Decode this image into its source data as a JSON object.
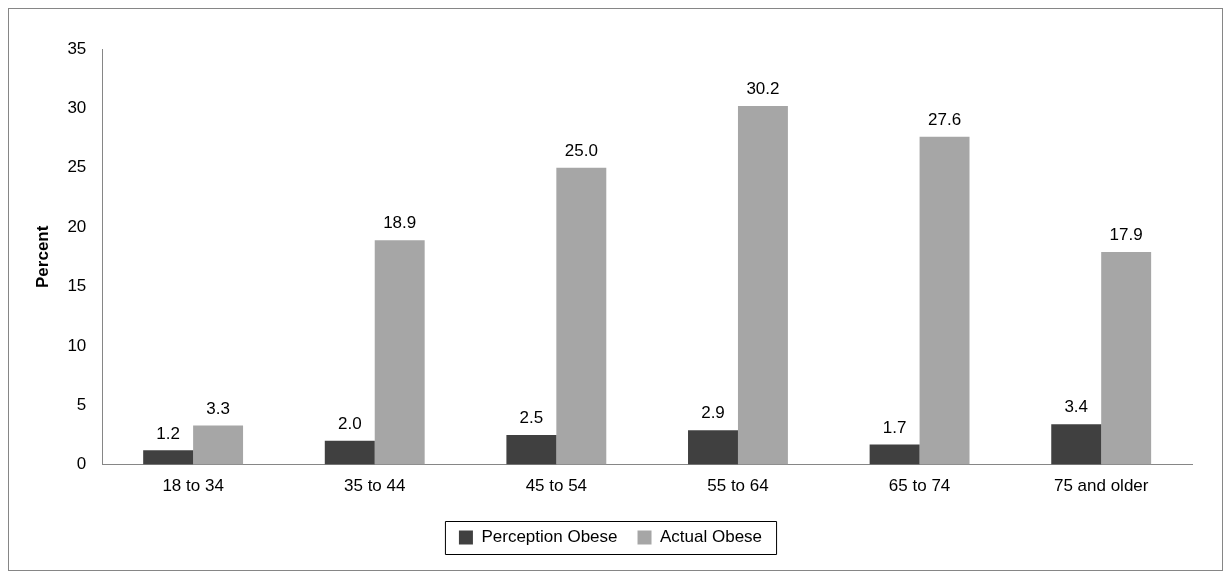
{
  "chart_data": {
    "type": "bar",
    "ylabel": "Percent",
    "categories": [
      "18 to 34",
      "35 to 44",
      "45 to 54",
      "55 to 64",
      "65 to 74",
      "75 and older"
    ],
    "series": [
      {
        "name": "Perception Obese",
        "color": "#404040",
        "values": [
          1.2,
          2.0,
          2.5,
          2.9,
          1.7,
          3.4
        ],
        "value_labels": [
          "1.2",
          "2.0",
          "2.5",
          "2.9",
          "1.7",
          "3.4"
        ]
      },
      {
        "name": "Actual Obese",
        "color": "#a6a6a6",
        "values": [
          3.3,
          18.9,
          25.0,
          30.2,
          27.6,
          17.9
        ],
        "value_labels": [
          "3.3",
          "18.9",
          "25.0",
          "30.2",
          "27.6",
          "17.9"
        ]
      }
    ],
    "ylim": [
      0,
      35
    ],
    "yticks": [
      0,
      5,
      10,
      15,
      20,
      25,
      30,
      35
    ],
    "grid": false,
    "legend": "bottom"
  }
}
